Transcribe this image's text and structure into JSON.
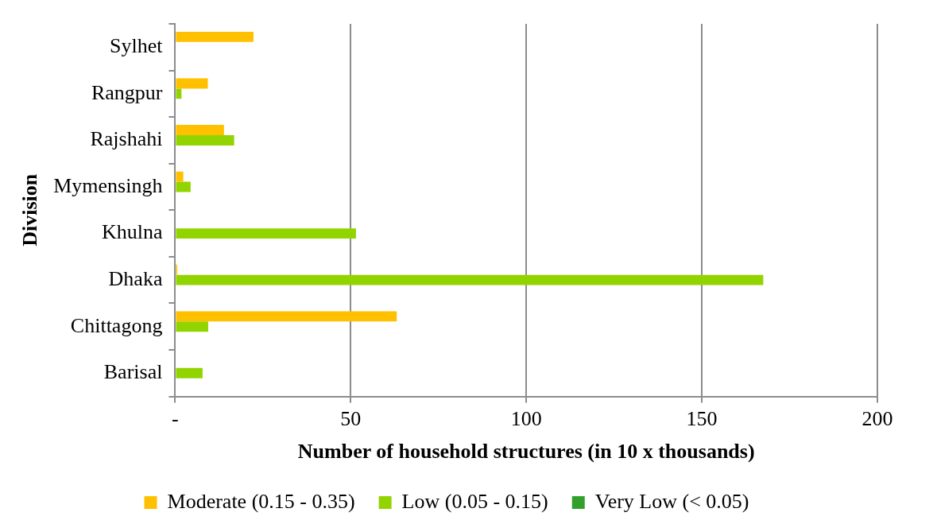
{
  "chart_data": {
    "type": "bar",
    "orientation": "horizontal",
    "xlabel": "Number of household structures (in 10 x thousands)",
    "ylabel": "Division",
    "categories": [
      "Sylhet",
      "Rangpur",
      "Rajshahi",
      "Mymensingh",
      "Khulna",
      "Dhaka",
      "Chittagong",
      "Barisal"
    ],
    "series": [
      {
        "name": "Moderate (0.15 - 0.35)",
        "color": "#ffc000",
        "values": [
          22.3,
          9.3,
          13.9,
          2.3,
          0,
          0.6,
          63.1,
          0
        ]
      },
      {
        "name": "Low (0.05 - 0.15)",
        "color": "#92d400",
        "values": [
          0,
          1.8,
          16.8,
          4.4,
          51.5,
          167.5,
          9.4,
          7.8
        ]
      },
      {
        "name": "Very Low (< 0.05)",
        "color": "#33a02c",
        "values": [
          0,
          0,
          0,
          0,
          0,
          0,
          0,
          0
        ]
      }
    ],
    "xlim": [
      0,
      200
    ],
    "xticks": [
      {
        "value": 0,
        "label": "-"
      },
      50,
      100,
      150,
      200
    ],
    "grid": "x",
    "legend": "bottom"
  }
}
